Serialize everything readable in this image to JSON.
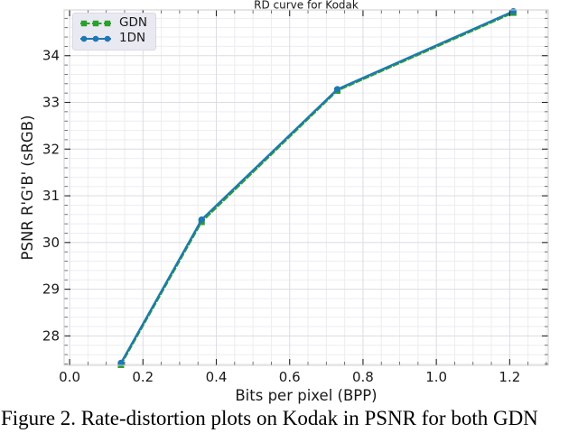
{
  "caption": "Figure 2. Rate-distortion plots on Kodak in PSNR for both GDN",
  "colors": {
    "background": "#ffffff",
    "grid_major": "#dcdce2",
    "grid_minor": "#ededf0",
    "spine": "#cccccc",
    "tick_major": "#262626",
    "tick_minor": "#555555",
    "text": "#1a1a1a",
    "legend_bg": "#e9e9f2",
    "legend_border": "#d9d9e3",
    "gdn_green": "#2ca02c",
    "idn_blue": "#1f77b4"
  },
  "chart_data": {
    "type": "line",
    "title": "RD curve for Kodak",
    "xlabel": "Bits per pixel (BPP)",
    "ylabel": "PSNR R'G'B' (sRGB)",
    "xlim": [
      -0.015,
      1.305
    ],
    "ylim": [
      27.37,
      34.98
    ],
    "x_ticks": [
      0.0,
      0.2,
      0.4,
      0.6,
      0.8,
      1.0,
      1.2
    ],
    "x_tick_labels": [
      "0.0",
      "0.2",
      "0.4",
      "0.6",
      "0.8",
      "1.0",
      "1.2"
    ],
    "y_ticks": [
      28,
      29,
      30,
      31,
      32,
      33,
      34
    ],
    "y_tick_labels": [
      "28",
      "29",
      "30",
      "31",
      "32",
      "33",
      "34"
    ],
    "x_minor_step": 0.05,
    "y_minor_step": 0.2,
    "grid": "major+minor",
    "legend_position": "upper left",
    "series": [
      {
        "name": "GDN",
        "color": "#2ca02c",
        "line_style": "dashed",
        "marker": "square",
        "x": [
          0.14,
          0.36,
          0.73,
          1.21
        ],
        "y": [
          27.38,
          30.44,
          33.25,
          34.92
        ]
      },
      {
        "name": "1DN",
        "color": "#1f77b4",
        "line_style": "solid",
        "marker": "circle",
        "x": [
          0.14,
          0.36,
          0.73,
          1.21
        ],
        "y": [
          27.42,
          30.49,
          33.28,
          34.95
        ]
      }
    ]
  }
}
